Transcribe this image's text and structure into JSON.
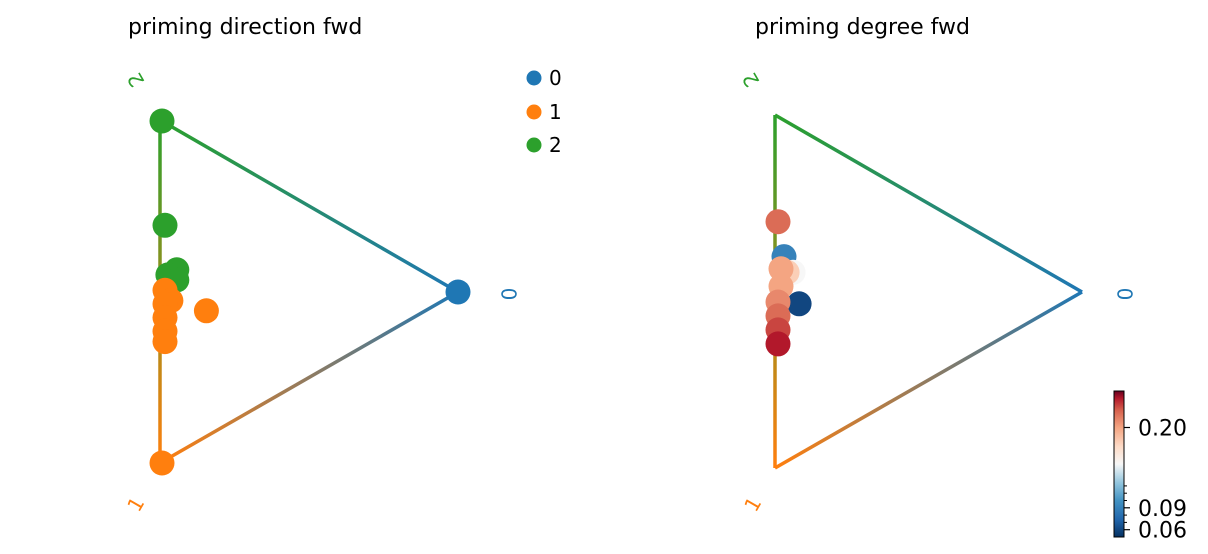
{
  "chart_data": [
    {
      "type": "scatter",
      "subtype": "ternary-simplex",
      "title": "priming direction fwd",
      "vertices": [
        "0",
        "1",
        "2"
      ],
      "vertex_colors": {
        "0": "#1f77b4",
        "1": "#ff7f0e",
        "2": "#2ca02c"
      },
      "legend": {
        "placement": "upper-right",
        "entries": [
          {
            "label": "0",
            "color": "#1f77b4"
          },
          {
            "label": "1",
            "color": "#ff7f0e"
          },
          {
            "label": "2",
            "color": "#2ca02c"
          }
        ]
      },
      "coordinate_note": "points as fractions (w0, w1, w2)",
      "points": [
        {
          "w": [
            0.0,
            0.0,
            1.0
          ],
          "group": "2"
        },
        {
          "w": [
            0.0,
            1.0,
            0.0
          ],
          "group": "1"
        },
        {
          "w": [
            1.0,
            0.0,
            0.0
          ],
          "group": "0"
        },
        {
          "w": [
            0.01,
            0.3,
            0.69
          ],
          "group": "2"
        },
        {
          "w": [
            0.05,
            0.41,
            0.54
          ],
          "group": "2"
        },
        {
          "w": [
            0.02,
            0.44,
            0.54
          ],
          "group": "2"
        },
        {
          "w": [
            0.05,
            0.44,
            0.51
          ],
          "group": "2"
        },
        {
          "w": [
            0.01,
            0.49,
            0.5
          ],
          "group": "1"
        },
        {
          "w": [
            0.03,
            0.51,
            0.46
          ],
          "group": "1"
        },
        {
          "w": [
            0.15,
            0.48,
            0.37
          ],
          "group": "1"
        },
        {
          "w": [
            0.01,
            0.53,
            0.46
          ],
          "group": "1"
        },
        {
          "w": [
            0.01,
            0.57,
            0.42
          ],
          "group": "1"
        },
        {
          "w": [
            0.01,
            0.61,
            0.38
          ],
          "group": "1"
        },
        {
          "w": [
            0.01,
            0.64,
            0.35
          ],
          "group": "1"
        }
      ]
    },
    {
      "type": "scatter",
      "subtype": "ternary-simplex",
      "title": "priming degree fwd",
      "vertices": [
        "0",
        "1",
        "2"
      ],
      "vertex_colors": {
        "0": "#1f77b4",
        "1": "#ff7f0e",
        "2": "#2ca02c"
      },
      "colorbar": {
        "colormap": "RdBu_r",
        "range": [
          0.05,
          0.25
        ],
        "ticks": [
          0.06,
          0.09,
          0.2
        ],
        "tick_labels": [
          "0.06",
          "0.09",
          "0.20"
        ]
      },
      "points": [
        {
          "w": [
            0.02,
            0.39,
            0.59
          ],
          "value": 0.09
        },
        {
          "w": [
            0.07,
            0.5,
            0.43
          ],
          "value": 0.06
        },
        {
          "w": [
            0.05,
            0.42,
            0.53
          ],
          "value": 0.15
        },
        {
          "w": [
            0.03,
            0.43,
            0.54
          ],
          "value": 0.18
        },
        {
          "w": [
            0.01,
            0.43,
            0.56
          ],
          "value": 0.2
        },
        {
          "w": [
            0.0,
            0.3,
            0.7
          ],
          "value": 0.22
        },
        {
          "w": [
            0.01,
            0.48,
            0.51
          ],
          "value": 0.2
        },
        {
          "w": [
            0.0,
            0.53,
            0.47
          ],
          "value": 0.21
        },
        {
          "w": [
            0.0,
            0.57,
            0.43
          ],
          "value": 0.22
        },
        {
          "w": [
            0.0,
            0.61,
            0.39
          ],
          "value": 0.23
        },
        {
          "w": [
            0.0,
            0.65,
            0.35
          ],
          "value": 0.24
        }
      ]
    }
  ]
}
